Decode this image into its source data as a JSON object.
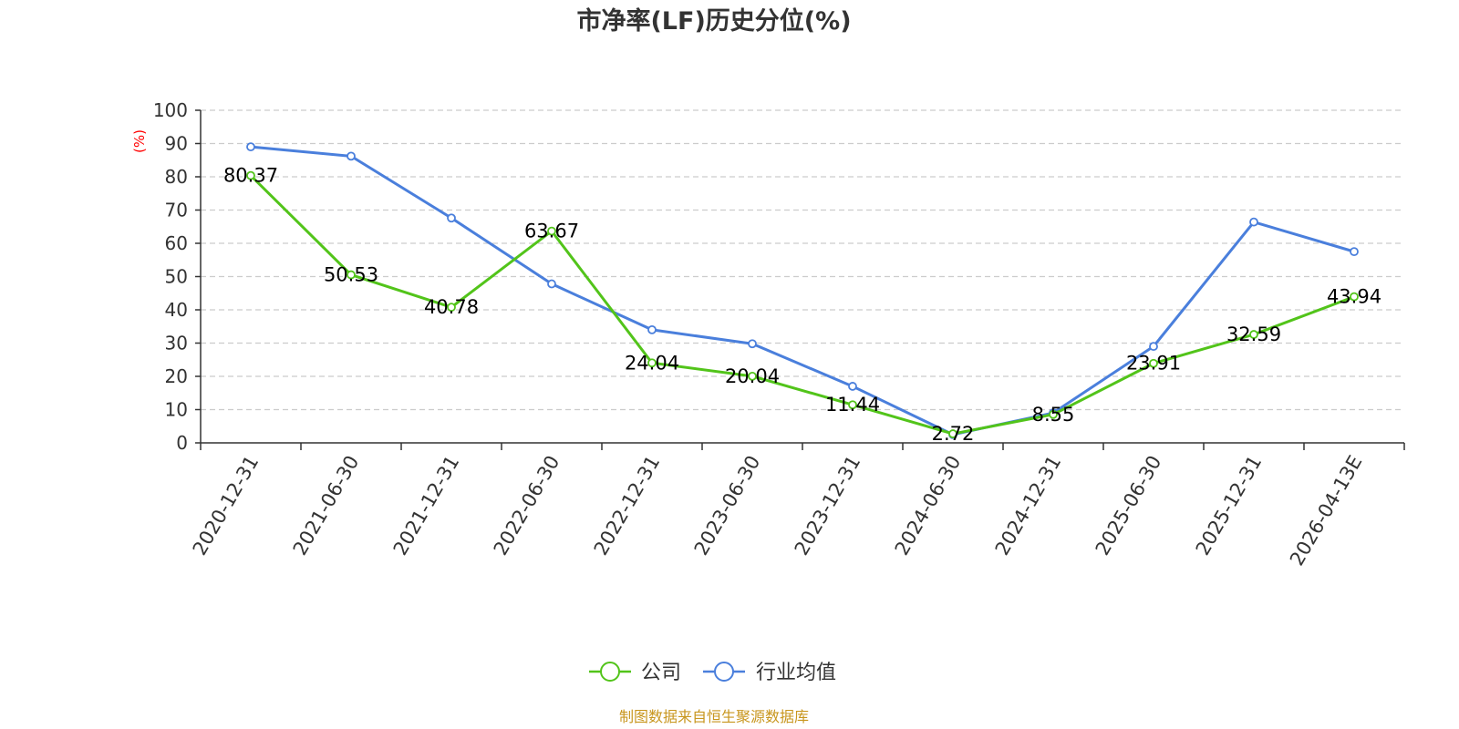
{
  "chart_data": {
    "type": "line",
    "title": "市净率(LF)历史分位(%)",
    "unit_label": "(%)",
    "categories": [
      "2020-12-31",
      "2021-06-30",
      "2021-12-31",
      "2022-06-30",
      "2022-12-31",
      "2023-06-30",
      "2023-12-31",
      "2024-06-30",
      "2024-12-31",
      "2025-06-30",
      "2025-12-31",
      "2026-04-13E"
    ],
    "ylim": [
      0,
      100
    ],
    "yticks": [
      0,
      10,
      20,
      30,
      40,
      50,
      60,
      70,
      80,
      90,
      100
    ],
    "grid": true,
    "legend_position": "bottom-center",
    "series": [
      {
        "name": "公司",
        "color": "#52c41a",
        "values": [
          80.37,
          50.53,
          40.78,
          63.67,
          24.04,
          20.04,
          11.44,
          2.72,
          8.55,
          23.91,
          32.59,
          43.94
        ],
        "labels": [
          "80.37",
          "50.53",
          "40.78",
          "63.67",
          "24.04",
          "20.04",
          "11.44",
          "2.72",
          "8.55",
          "23.91",
          "32.59",
          "43.94"
        ]
      },
      {
        "name": "行业均值",
        "color": "#4a7fdc",
        "values": [
          89,
          86.2,
          67.6,
          47.8,
          34,
          29.8,
          17,
          2.5,
          9,
          29,
          66.4,
          57.5
        ]
      }
    ]
  },
  "source": "制图数据来自恒生聚源数据库"
}
